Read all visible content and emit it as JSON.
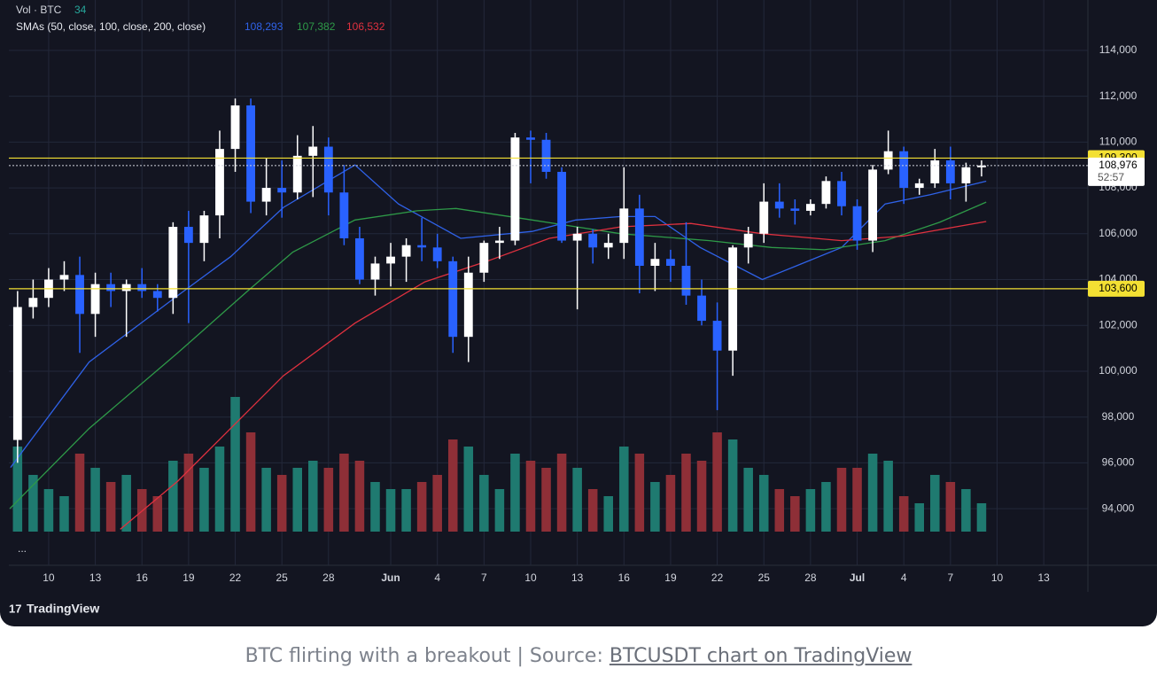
{
  "chart_data": {
    "type": "candlestick",
    "vol_label": "Vol · BTC",
    "vol_value": 34,
    "sma_label": "SMAs (50, close, 100, close, 200, close)",
    "up_color": "#ffffff",
    "down_color": "#2962ff",
    "vol_up_color": "#1f7a70",
    "vol_down_color": "#8e2f37",
    "x": [
      8,
      9,
      10,
      11,
      12,
      13,
      14,
      15,
      16,
      17,
      18,
      19,
      20,
      21,
      22,
      23,
      24,
      25,
      26,
      27,
      28,
      29,
      30,
      31,
      32,
      33,
      34,
      35,
      36,
      37,
      38,
      39,
      40,
      41,
      42,
      43,
      44,
      45,
      46,
      47,
      48,
      49,
      50,
      51,
      52,
      53,
      54,
      55,
      56,
      57,
      58,
      59,
      60,
      61,
      62,
      63,
      64,
      65,
      66,
      67,
      68,
      69,
      70
    ],
    "open": [
      97000,
      102800,
      103200,
      104000,
      104200,
      102500,
      103800,
      103500,
      103800,
      103500,
      103200,
      106300,
      105600,
      106800,
      109700,
      111600,
      107400,
      108000,
      107800,
      109400,
      109800,
      107800,
      105800,
      104000,
      104700,
      105000,
      105500,
      105400,
      104800,
      101500,
      104300,
      105600,
      105700,
      110200,
      110100,
      108700,
      105700,
      106000,
      105400,
      105600,
      107100,
      104600,
      104900,
      104600,
      103300,
      102200,
      100900,
      105400,
      106000,
      107400,
      107100,
      107000,
      107300,
      108300,
      107200,
      105700,
      108800,
      109600,
      108000,
      108200,
      109200,
      108200,
      108900
    ],
    "high": [
      103500,
      104000,
      104500,
      104800,
      105000,
      104300,
      104300,
      104000,
      104500,
      103800,
      106500,
      107000,
      107000,
      110500,
      111900,
      111900,
      109300,
      109200,
      110300,
      110700,
      110200,
      109000,
      106300,
      105000,
      105600,
      105800,
      106700,
      106000,
      105000,
      105000,
      105700,
      106300,
      110400,
      110500,
      110400,
      108900,
      106300,
      106200,
      106000,
      108900,
      107700,
      105600,
      105300,
      106500,
      104000,
      103000,
      105500,
      106300,
      108200,
      108200,
      107500,
      107500,
      108500,
      108700,
      107500,
      109000,
      110500,
      109800,
      108400,
      109700,
      109800,
      109100,
      109200
    ],
    "low": [
      96000,
      102300,
      102800,
      103500,
      100800,
      101500,
      102800,
      101500,
      103200,
      102600,
      102500,
      102100,
      104800,
      105800,
      108700,
      106900,
      106800,
      106700,
      107500,
      107600,
      106800,
      105500,
      103800,
      103300,
      103700,
      103900,
      104800,
      104500,
      100800,
      100400,
      103900,
      104900,
      105500,
      108200,
      108400,
      105600,
      102700,
      104700,
      104900,
      104900,
      103400,
      103500,
      103900,
      102900,
      102000,
      98300,
      99800,
      104700,
      105600,
      106700,
      106400,
      106800,
      107100,
      106800,
      105300,
      105200,
      108600,
      107300,
      107700,
      108000,
      107500,
      107400,
      108500
    ],
    "close": [
      102800,
      103200,
      104000,
      104200,
      102500,
      103800,
      103500,
      103800,
      103500,
      103200,
      106300,
      105600,
      106800,
      109700,
      111600,
      107400,
      108000,
      107800,
      109400,
      109800,
      107800,
      105800,
      104000,
      104700,
      105000,
      105500,
      105400,
      104800,
      101500,
      104300,
      105600,
      105700,
      110200,
      110100,
      108700,
      105700,
      106000,
      105400,
      105600,
      107100,
      104600,
      104900,
      104600,
      103300,
      102200,
      100900,
      105400,
      106000,
      107400,
      107100,
      107000,
      107300,
      108300,
      107200,
      105700,
      108800,
      109600,
      108000,
      108200,
      109200,
      108200,
      108900,
      108976
    ],
    "volume": [
      60,
      40,
      30,
      25,
      55,
      45,
      35,
      40,
      30,
      25,
      50,
      55,
      45,
      60,
      95,
      70,
      45,
      40,
      45,
      50,
      45,
      55,
      50,
      35,
      30,
      30,
      35,
      40,
      65,
      60,
      40,
      30,
      55,
      50,
      45,
      55,
      45,
      30,
      25,
      60,
      55,
      35,
      40,
      55,
      50,
      70,
      65,
      45,
      40,
      30,
      25,
      30,
      35,
      45,
      45,
      55,
      50,
      25,
      20,
      40,
      35,
      30,
      20
    ],
    "vol_ylim": [
      0,
      100
    ],
    "smas": [
      {
        "color": "#2f62e8",
        "label": "108,293",
        "x": [
          7.55,
          12.6,
          18.3,
          21.7,
          25.1,
          29.7,
          32.5,
          36.5,
          41.1,
          43.9,
          46.8,
          49,
          51.9,
          55.9,
          58.1,
          61,
          63.8,
          66.7,
          70.3
        ],
        "values": [
          95800,
          100400,
          103300,
          105000,
          107150,
          109000,
          107300,
          105800,
          106100,
          106600,
          106750,
          106750,
          105400,
          104000,
          104600,
          105400,
          107300,
          107700,
          108293
        ]
      },
      {
        "color": "#2e9a48",
        "label": "107,382",
        "x": [
          7.5,
          12.6,
          18.3,
          22.8,
          25.7,
          29.7,
          33.7,
          36.2,
          41.1,
          46.8,
          52.5,
          56.5,
          59.9,
          63.8,
          67.3,
          70.3
        ],
        "values": [
          94000,
          97500,
          100800,
          103500,
          105200,
          106600,
          107000,
          107100,
          106600,
          106000,
          105700,
          105400,
          105300,
          105700,
          106500,
          107382
        ]
      },
      {
        "color": "#e0313f",
        "label": "106,532",
        "x": [
          14.6,
          18.3,
          21.7,
          25.1,
          29.7,
          34.2,
          38.2,
          42.2,
          46.8,
          51.3,
          55.9,
          61,
          65,
          70.3
        ],
        "values": [
          93100,
          95200,
          97500,
          99800,
          102100,
          103900,
          104800,
          105800,
          106300,
          106450,
          106000,
          105700,
          105900,
          106532
        ]
      }
    ],
    "hlines": [
      {
        "value": 109300,
        "label": "109,300",
        "color": "#f3e033"
      },
      {
        "value": 103600,
        "label": "103,600",
        "color": "#f3e033"
      }
    ],
    "last_price": {
      "value": 108976,
      "label": "108,976",
      "countdown": "52:57"
    },
    "xlim": [
      7.44,
      76.84
    ],
    "ylim": [
      93000,
      116200
    ],
    "xticks": [
      {
        "value": 10,
        "label": "10"
      },
      {
        "value": 13,
        "label": "13"
      },
      {
        "value": 16,
        "label": "16"
      },
      {
        "value": 19,
        "label": "19"
      },
      {
        "value": 22,
        "label": "22"
      },
      {
        "value": 25,
        "label": "25"
      },
      {
        "value": 28,
        "label": "28"
      },
      {
        "value": 32,
        "label": "Jun"
      },
      {
        "value": 35,
        "label": "4"
      },
      {
        "value": 38,
        "label": "7"
      },
      {
        "value": 41,
        "label": "10"
      },
      {
        "value": 44,
        "label": "13"
      },
      {
        "value": 47,
        "label": "16"
      },
      {
        "value": 50,
        "label": "19"
      },
      {
        "value": 53,
        "label": "22"
      },
      {
        "value": 56,
        "label": "25"
      },
      {
        "value": 59,
        "label": "28"
      },
      {
        "value": 62,
        "label": "Jul"
      },
      {
        "value": 65,
        "label": "4"
      },
      {
        "value": 68,
        "label": "7"
      },
      {
        "value": 71,
        "label": "10"
      },
      {
        "value": 74,
        "label": "13"
      }
    ],
    "yticks": [
      {
        "value": 94000,
        "label": "94,000"
      },
      {
        "value": 96000,
        "label": "96,000"
      },
      {
        "value": 98000,
        "label": "98,000"
      },
      {
        "value": 100000,
        "label": "100,000"
      },
      {
        "value": 102000,
        "label": "102,000"
      },
      {
        "value": 104000,
        "label": "104,000"
      },
      {
        "value": 106000,
        "label": "106,000"
      },
      {
        "value": 108000,
        "label": "108,000"
      },
      {
        "value": 110000,
        "label": "110,000"
      },
      {
        "value": 112000,
        "label": "112,000"
      },
      {
        "value": 114000,
        "label": "114,000"
      }
    ],
    "grid": true
  },
  "footer": {
    "more": "...",
    "brand": "TradingView"
  },
  "caption": {
    "text": "BTC flirting with a breakout | Source: ",
    "link": "BTCUSDT chart on TradingView"
  }
}
